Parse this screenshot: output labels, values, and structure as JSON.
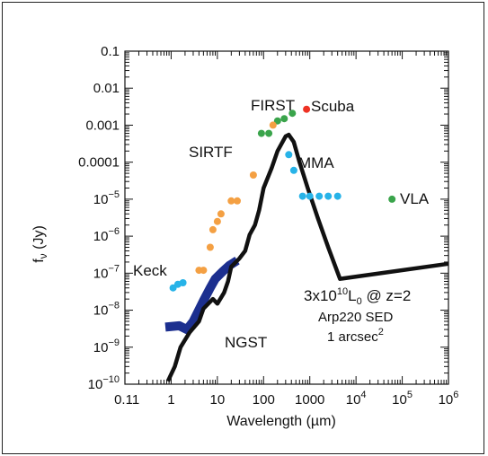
{
  "chart_data": {
    "type": "scatter",
    "xlabel": "Wavelength (µm)",
    "ylabel": "f",
    "ylabel_sub": "ν",
    "ylabel_unit": " (Jy)",
    "x_scale": "log",
    "y_scale": "log",
    "xlim": [
      0.1,
      1000000
    ],
    "ylim": [
      1e-10,
      0.1
    ],
    "grid": false,
    "x_tick_labels": [
      {
        "v": 0.11,
        "base": "0.11",
        "exp": ""
      },
      {
        "v": 1,
        "base": "1",
        "exp": ""
      },
      {
        "v": 10,
        "base": "10",
        "exp": ""
      },
      {
        "v": 100,
        "base": "100",
        "exp": ""
      },
      {
        "v": 1000,
        "base": "1000",
        "exp": ""
      },
      {
        "v": 10000,
        "base": "10",
        "exp": "4"
      },
      {
        "v": 100000,
        "base": "10",
        "exp": "5"
      },
      {
        "v": 1000000,
        "base": "10",
        "exp": "6"
      }
    ],
    "y_tick_labels": [
      {
        "v": 0.1,
        "base": "0.1",
        "exp": ""
      },
      {
        "v": 0.01,
        "base": "0.01",
        "exp": ""
      },
      {
        "v": 0.001,
        "base": "0.001",
        "exp": ""
      },
      {
        "v": 0.0001,
        "base": "0.0001",
        "exp": ""
      },
      {
        "v": 1e-05,
        "base": "10",
        "exp": "−5"
      },
      {
        "v": 1e-06,
        "base": "10",
        "exp": "−6"
      },
      {
        "v": 1e-07,
        "base": "10",
        "exp": "−7"
      },
      {
        "v": 1e-08,
        "base": "10",
        "exp": "−8"
      },
      {
        "v": 1e-09,
        "base": "10",
        "exp": "−9"
      },
      {
        "v": 1e-10,
        "base": "10",
        "exp": "−10"
      }
    ],
    "sed_curve": {
      "color": "#111111",
      "points": [
        [
          0.85,
          1.2e-10
        ],
        [
          1.2,
          3e-10
        ],
        [
          1.6,
          1e-09
        ],
        [
          2.5,
          2.5e-09
        ],
        [
          4,
          5e-09
        ],
        [
          5,
          1.1e-08
        ],
        [
          8,
          2e-08
        ],
        [
          10,
          1.5e-08
        ],
        [
          14,
          3e-08
        ],
        [
          17,
          6e-08
        ],
        [
          20,
          1.5e-07
        ],
        [
          30,
          2.5e-07
        ],
        [
          40,
          4e-07
        ],
        [
          50,
          1.1e-06
        ],
        [
          65,
          2e-06
        ],
        [
          80,
          5e-06
        ],
        [
          100,
          2e-05
        ],
        [
          150,
          7e-05
        ],
        [
          200,
          0.0002
        ],
        [
          300,
          0.0005
        ],
        [
          350,
          0.00055
        ],
        [
          450,
          0.00035
        ],
        [
          600,
          0.0001
        ],
        [
          900,
          2e-05
        ],
        [
          1500,
          3e-06
        ],
        [
          2500,
          5e-07
        ],
        [
          4500,
          7e-08
        ],
        [
          1000000,
          1.8e-07
        ]
      ]
    },
    "ngst_curve": {
      "color": "#1c2f8f",
      "points": [
        [
          0.75,
          3.5e-09
        ],
        [
          1.5,
          3.8e-09
        ],
        [
          2.2,
          3e-09
        ],
        [
          3,
          5e-09
        ],
        [
          5,
          1.8e-08
        ],
        [
          7,
          4e-08
        ],
        [
          9,
          7e-08
        ],
        [
          13,
          1.1e-07
        ],
        [
          18,
          1.6e-07
        ],
        [
          27,
          2.2e-07
        ]
      ]
    },
    "series": [
      {
        "name": "Keck",
        "color": "#27b3e8",
        "points": [
          [
            1.1,
            4e-08
          ],
          [
            1.4,
            5e-08
          ],
          [
            1.8,
            5.5e-08
          ]
        ]
      },
      {
        "name": "SIRTF",
        "color": "#f4a043",
        "points": [
          [
            4,
            1.2e-07
          ],
          [
            5,
            1.2e-07
          ],
          [
            7,
            5e-07
          ],
          [
            8,
            1.5e-06
          ],
          [
            10,
            2.5e-06
          ],
          [
            12,
            4e-06
          ],
          [
            20,
            9e-06
          ],
          [
            27,
            9e-06
          ],
          [
            60,
            4.5e-05
          ]
        ]
      },
      {
        "name": "FIRST",
        "color": "#3aa44b",
        "points": [
          [
            90,
            0.0006
          ],
          [
            130,
            0.0006
          ],
          [
            200,
            0.0013
          ],
          [
            280,
            0.0015
          ],
          [
            420,
            0.0021
          ]
        ]
      },
      {
        "name": "Scuba",
        "color": "#ee3224",
        "points": [
          [
            850,
            0.0027
          ]
        ]
      },
      {
        "name": "SCUBA-orange",
        "color": "#f4a043",
        "points": [
          [
            160,
            0.001
          ]
        ]
      },
      {
        "name": "MMA",
        "color": "#27b3e8",
        "points": [
          [
            350,
            0.00016
          ],
          [
            450,
            6e-05
          ],
          [
            700,
            1.2e-05
          ],
          [
            1000,
            1.2e-05
          ],
          [
            1600,
            1.2e-05
          ],
          [
            2500,
            1.2e-05
          ],
          [
            4000,
            1.2e-05
          ]
        ]
      },
      {
        "name": "VLA",
        "color": "#3aa44b",
        "points": [
          [
            60000,
            1e-05
          ]
        ]
      }
    ],
    "labels": {
      "keck": "Keck",
      "sirtf": "SIRTF",
      "first": "FIRST",
      "scuba": "Scuba",
      "mma": "MMA",
      "vla": "VLA",
      "ngst": "NGST"
    },
    "annotation": {
      "line1_pre": "3x10",
      "line1_exp": "10",
      "line1_mid": "L",
      "line1_sub": "0",
      "line1_post": " @ z=2",
      "line2": "Arp220 SED",
      "line3_pre": "1 arcsec",
      "line3_exp": "2"
    },
    "colors": {
      "mma_label": "#27b3e8"
    }
  }
}
